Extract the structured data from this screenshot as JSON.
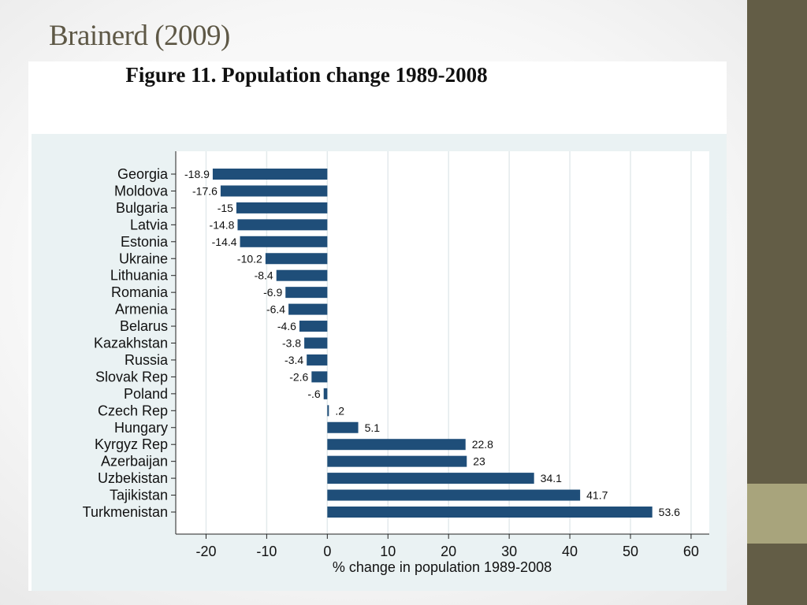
{
  "slide": {
    "title": "Brainerd (2009)"
  },
  "colors": {
    "bar": "#1f4e79",
    "sidebar": "#635d46",
    "sidebar_accent": "#a8a47c",
    "title": "#5e5846"
  },
  "chart_data": {
    "type": "bar",
    "orientation": "horizontal",
    "title": "Figure 11.  Population change 1989-2008",
    "xlabel": "% change in population 1989-2008",
    "ylabel": "",
    "xlim": [
      -25,
      63
    ],
    "xticks": [
      -20,
      -10,
      0,
      10,
      20,
      30,
      40,
      50,
      60
    ],
    "grid": true,
    "categories": [
      "Georgia",
      "Moldova",
      "Bulgaria",
      "Latvia",
      "Estonia",
      "Ukraine",
      "Lithuania",
      "Romania",
      "Armenia",
      "Belarus",
      "Kazakhstan",
      "Russia",
      "Slovak Rep",
      "Poland",
      "Czech Rep",
      "Hungary",
      "Kyrgyz Rep",
      "Azerbaijan",
      "Uzbekistan",
      "Tajikistan",
      "Turkmenistan"
    ],
    "values": [
      -18.9,
      -17.6,
      -15,
      -14.8,
      -14.4,
      -10.2,
      -8.4,
      -6.9,
      -6.4,
      -4.6,
      -3.8,
      -3.4,
      -2.6,
      -0.6,
      0.2,
      5.1,
      22.8,
      23,
      34.1,
      41.7,
      53.6
    ],
    "value_labels": [
      "-18.9",
      "-17.6",
      "-15",
      "-14.8",
      "-14.4",
      "-10.2",
      "-8.4",
      "-6.9",
      "-6.4",
      "-4.6",
      "-3.8",
      "-3.4",
      "-2.6",
      "-.6",
      ".2",
      "5.1",
      "22.8",
      "23",
      "34.1",
      "41.7",
      "53.6"
    ]
  }
}
